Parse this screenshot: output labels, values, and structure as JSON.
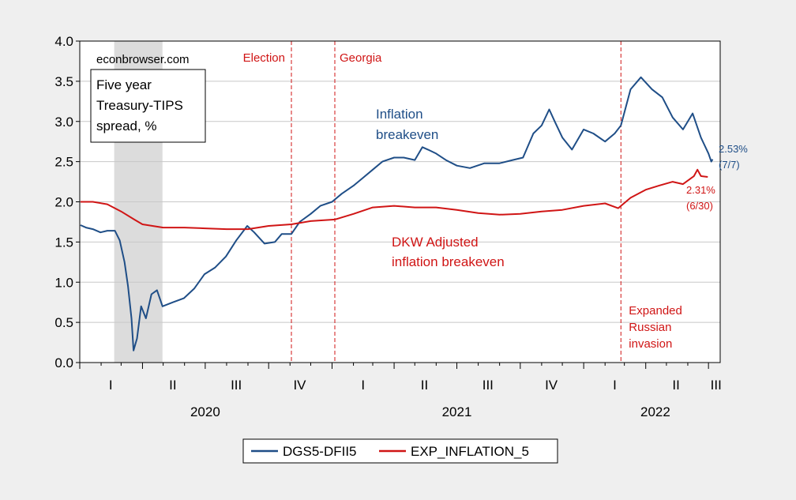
{
  "chart_data": {
    "type": "line",
    "title": "",
    "xlabel": "",
    "ylabel": "",
    "ylim": [
      0.0,
      4.0
    ],
    "xlim": [
      "2020-01-01",
      "2022-07-18"
    ],
    "grid": true,
    "y_ticks": [
      "0.0",
      "0.5",
      "1.0",
      "1.5",
      "2.0",
      "2.5",
      "3.0",
      "3.5",
      "4.0"
    ],
    "quarter_ticks": [
      {
        "label": "I",
        "date": "2020-02-15"
      },
      {
        "label": "II",
        "date": "2020-05-15"
      },
      {
        "label": "III",
        "date": "2020-08-15"
      },
      {
        "label": "IV",
        "date": "2020-11-15"
      },
      {
        "label": "I",
        "date": "2021-02-15"
      },
      {
        "label": "II",
        "date": "2021-05-15"
      },
      {
        "label": "III",
        "date": "2021-08-15"
      },
      {
        "label": "IV",
        "date": "2021-11-15"
      },
      {
        "label": "I",
        "date": "2022-02-15"
      },
      {
        "label": "II",
        "date": "2022-05-15"
      },
      {
        "label": "III",
        "date": "2022-07-12"
      }
    ],
    "year_labels": [
      {
        "label": "2020",
        "date": "2020-07-01"
      },
      {
        "label": "2021",
        "date": "2021-07-01"
      },
      {
        "label": "2022",
        "date": "2022-04-15"
      }
    ],
    "shaded_periods": [
      {
        "start": "2020-02-20",
        "end": "2020-04-30"
      }
    ],
    "event_lines": [
      {
        "label": "Election",
        "date": "2020-11-03"
      },
      {
        "label": "Georgia",
        "date": "2021-01-05"
      },
      {
        "label": "Expanded\nRussian\ninvasion",
        "date": "2022-02-24"
      }
    ],
    "series": [
      {
        "name": "DGS5-DFII5",
        "color": "#1f4e87",
        "end_label": "2.53%\n(7/7)",
        "points": [
          [
            "2020-01-02",
            1.71
          ],
          [
            "2020-01-10",
            1.68
          ],
          [
            "2020-01-20",
            1.66
          ],
          [
            "2020-01-31",
            1.62
          ],
          [
            "2020-02-10",
            1.64
          ],
          [
            "2020-02-21",
            1.64
          ],
          [
            "2020-02-28",
            1.52
          ],
          [
            "2020-03-06",
            1.25
          ],
          [
            "2020-03-11",
            0.95
          ],
          [
            "2020-03-16",
            0.55
          ],
          [
            "2020-03-19",
            0.15
          ],
          [
            "2020-03-24",
            0.3
          ],
          [
            "2020-03-30",
            0.7
          ],
          [
            "2020-04-06",
            0.55
          ],
          [
            "2020-04-14",
            0.85
          ],
          [
            "2020-04-22",
            0.9
          ],
          [
            "2020-04-30",
            0.7
          ],
          [
            "2020-05-15",
            0.75
          ],
          [
            "2020-05-31",
            0.8
          ],
          [
            "2020-06-15",
            0.92
          ],
          [
            "2020-06-30",
            1.1
          ],
          [
            "2020-07-15",
            1.18
          ],
          [
            "2020-07-31",
            1.32
          ],
          [
            "2020-08-15",
            1.52
          ],
          [
            "2020-08-31",
            1.7
          ],
          [
            "2020-09-10",
            1.62
          ],
          [
            "2020-09-25",
            1.48
          ],
          [
            "2020-10-10",
            1.5
          ],
          [
            "2020-10-20",
            1.6
          ],
          [
            "2020-11-03",
            1.6
          ],
          [
            "2020-11-15",
            1.75
          ],
          [
            "2020-12-01",
            1.85
          ],
          [
            "2020-12-15",
            1.95
          ],
          [
            "2021-01-01",
            2.0
          ],
          [
            "2021-01-15",
            2.1
          ],
          [
            "2021-02-01",
            2.2
          ],
          [
            "2021-02-15",
            2.3
          ],
          [
            "2021-03-01",
            2.4
          ],
          [
            "2021-03-15",
            2.5
          ],
          [
            "2021-04-01",
            2.55
          ],
          [
            "2021-04-15",
            2.55
          ],
          [
            "2021-05-01",
            2.52
          ],
          [
            "2021-05-12",
            2.68
          ],
          [
            "2021-05-20",
            2.65
          ],
          [
            "2021-06-01",
            2.6
          ],
          [
            "2021-06-15",
            2.52
          ],
          [
            "2021-07-01",
            2.45
          ],
          [
            "2021-07-20",
            2.42
          ],
          [
            "2021-08-10",
            2.48
          ],
          [
            "2021-09-01",
            2.48
          ],
          [
            "2021-09-20",
            2.52
          ],
          [
            "2021-10-05",
            2.55
          ],
          [
            "2021-10-20",
            2.85
          ],
          [
            "2021-11-01",
            2.95
          ],
          [
            "2021-11-12",
            3.15
          ],
          [
            "2021-11-20",
            3.0
          ],
          [
            "2021-12-01",
            2.8
          ],
          [
            "2021-12-15",
            2.65
          ],
          [
            "2022-01-01",
            2.9
          ],
          [
            "2022-01-15",
            2.85
          ],
          [
            "2022-02-01",
            2.75
          ],
          [
            "2022-02-15",
            2.85
          ],
          [
            "2022-02-24",
            2.95
          ],
          [
            "2022-03-10",
            3.4
          ],
          [
            "2022-03-25",
            3.55
          ],
          [
            "2022-04-10",
            3.4
          ],
          [
            "2022-04-25",
            3.3
          ],
          [
            "2022-05-10",
            3.05
          ],
          [
            "2022-05-25",
            2.9
          ],
          [
            "2022-06-08",
            3.1
          ],
          [
            "2022-06-20",
            2.8
          ],
          [
            "2022-07-01",
            2.6
          ],
          [
            "2022-07-05",
            2.5
          ],
          [
            "2022-07-07",
            2.53
          ]
        ]
      },
      {
        "name": "EXP_INFLATION_5",
        "color": "#d01515",
        "end_label": "2.31%\n(6/30)",
        "points": [
          [
            "2020-01-02",
            2.0
          ],
          [
            "2020-01-20",
            2.0
          ],
          [
            "2020-02-10",
            1.97
          ],
          [
            "2020-03-01",
            1.88
          ],
          [
            "2020-03-20",
            1.78
          ],
          [
            "2020-04-01",
            1.72
          ],
          [
            "2020-05-01",
            1.68
          ],
          [
            "2020-06-01",
            1.68
          ],
          [
            "2020-07-01",
            1.67
          ],
          [
            "2020-08-01",
            1.66
          ],
          [
            "2020-09-01",
            1.66
          ],
          [
            "2020-10-01",
            1.7
          ],
          [
            "2020-11-03",
            1.72
          ],
          [
            "2020-12-01",
            1.76
          ],
          [
            "2021-01-05",
            1.78
          ],
          [
            "2021-02-01",
            1.85
          ],
          [
            "2021-03-01",
            1.93
          ],
          [
            "2021-04-01",
            1.95
          ],
          [
            "2021-05-01",
            1.93
          ],
          [
            "2021-06-01",
            1.93
          ],
          [
            "2021-07-01",
            1.9
          ],
          [
            "2021-08-01",
            1.86
          ],
          [
            "2021-09-01",
            1.84
          ],
          [
            "2021-10-01",
            1.85
          ],
          [
            "2021-11-01",
            1.88
          ],
          [
            "2021-12-01",
            1.9
          ],
          [
            "2022-01-01",
            1.95
          ],
          [
            "2022-02-01",
            1.98
          ],
          [
            "2022-02-20",
            1.92
          ],
          [
            "2022-03-10",
            2.05
          ],
          [
            "2022-04-01",
            2.15
          ],
          [
            "2022-04-20",
            2.2
          ],
          [
            "2022-05-10",
            2.25
          ],
          [
            "2022-05-25",
            2.22
          ],
          [
            "2022-06-10",
            2.32
          ],
          [
            "2022-06-15",
            2.4
          ],
          [
            "2022-06-20",
            2.32
          ],
          [
            "2022-06-30",
            2.31
          ]
        ]
      }
    ]
  },
  "annotations": {
    "watermark": "econbrowser.com",
    "boxed_title": [
      "Five year",
      "Treasury-TIPS",
      "spread, %"
    ],
    "inflation_label": [
      "Inflation",
      "breakeven"
    ],
    "dkw_label": [
      "DKW Adjusted",
      "inflation breakeven"
    ]
  }
}
